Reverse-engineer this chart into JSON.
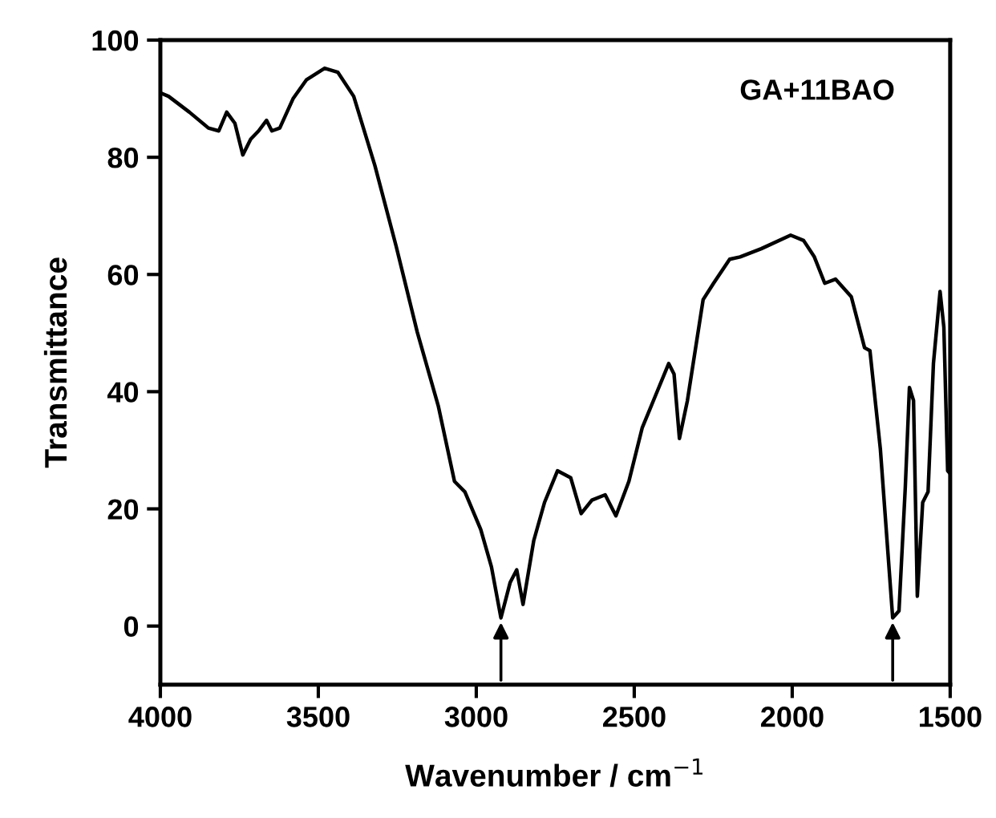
{
  "chart_data": {
    "type": "line",
    "xlabel": "Wavenumber / cm$^{−1}$",
    "ylabel": "Transmittance",
    "annotations": [
      "GA+11BAO"
    ],
    "x": [
      4000,
      3974,
      3908,
      3848,
      3815,
      3790,
      3764,
      3739,
      3714,
      3689,
      3664,
      3647,
      3622,
      3580,
      3538,
      3480,
      3438,
      3388,
      3321,
      3254,
      3187,
      3120,
      3069,
      3036,
      2986,
      2952,
      2922,
      2893,
      2872,
      2852,
      2818,
      2784,
      2743,
      2701,
      2668,
      2634,
      2592,
      2558,
      2517,
      2475,
      2433,
      2391,
      2374,
      2357,
      2332,
      2282,
      2249,
      2198,
      2165,
      2098,
      2005,
      1964,
      1930,
      1897,
      1863,
      1813,
      1771,
      1754,
      1721,
      1682,
      1662,
      1642,
      1629,
      1616,
      1604,
      1587,
      1570,
      1553,
      1532,
      1520,
      1508,
      1500
    ],
    "series": [
      {
        "color": "#000000",
        "values": [
          91,
          90.4,
          87.7,
          85,
          84.5,
          87.7,
          85.8,
          80.4,
          83.1,
          84.5,
          86.3,
          84.5,
          85,
          90,
          93.2,
          95.2,
          94.5,
          90.4,
          78.6,
          64.9,
          50.2,
          37.5,
          24.7,
          22.9,
          16.5,
          10.1,
          1.4,
          7.4,
          9.6,
          3.7,
          14.6,
          21.1,
          26.5,
          25.3,
          19.2,
          21.5,
          22.4,
          18.8,
          24.7,
          33.8,
          39.3,
          44.8,
          43,
          32,
          38.4,
          55.7,
          58.5,
          62.6,
          63,
          64.4,
          66.7,
          65.8,
          63,
          58.5,
          59.2,
          56.2,
          47.5,
          47,
          30.2,
          1.4,
          2.6,
          23.8,
          40.7,
          38.5,
          5.1,
          21.1,
          22.9,
          44.8,
          57.1,
          51,
          26.5,
          26
        ]
      }
    ],
    "xlim": [
      4000,
      1500
    ],
    "xticks": [
      4000,
      3500,
      3000,
      2500,
      2000,
      1500
    ],
    "ylim": [
      -10,
      100
    ],
    "yticks": [
      0,
      20,
      40,
      60,
      80,
      100
    ],
    "grid": false,
    "marker": "none",
    "line_style": "solid"
  }
}
